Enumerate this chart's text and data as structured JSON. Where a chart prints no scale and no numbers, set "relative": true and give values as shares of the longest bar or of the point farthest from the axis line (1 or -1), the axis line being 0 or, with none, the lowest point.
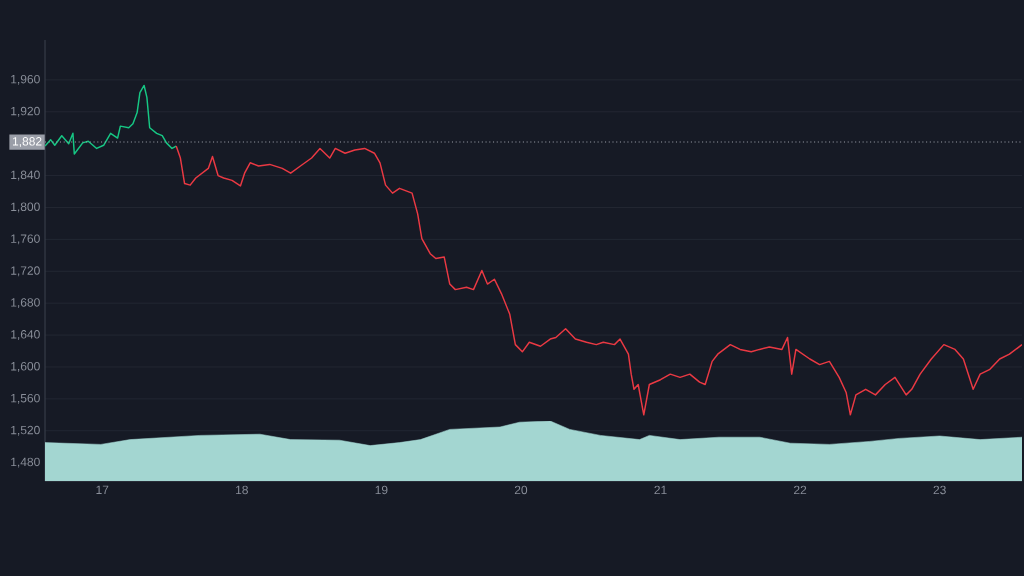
{
  "chart_data": [
    {
      "type": "line",
      "xlim": [
        16.59,
        23.59
      ],
      "ylim": [
        1457,
        2010
      ],
      "tick_labels": "y",
      "yticks": [
        {
          "value": 1480,
          "label": "1,480"
        },
        {
          "value": 1520,
          "label": "1,520"
        },
        {
          "value": 1560,
          "label": "1,560"
        },
        {
          "value": 1600,
          "label": "1,600"
        },
        {
          "value": 1640,
          "label": "1,640"
        },
        {
          "value": 1680,
          "label": "1,680"
        },
        {
          "value": 1720,
          "label": "1,720"
        },
        {
          "value": 1760,
          "label": "1,760"
        },
        {
          "value": 1800,
          "label": "1,800"
        },
        {
          "value": 1840,
          "label": "1,840"
        },
        {
          "value": 1920,
          "label": "1,920"
        },
        {
          "value": 1960,
          "label": "1,960"
        }
      ],
      "grid": "y",
      "ref_lines": [
        {
          "axis": "y",
          "value": 1882,
          "label": "1,882",
          "color": "#9a9ea8",
          "line_style": "dotted"
        }
      ],
      "series": [
        {
          "color": "#16c784",
          "x": [
            16.59,
            16.63,
            16.66,
            16.71,
            16.76,
            16.79,
            16.8,
            16.86,
            16.9,
            16.96,
            17.01,
            17.06,
            17.11,
            17.13,
            17.19,
            17.22,
            17.25,
            17.27,
            17.3,
            17.32,
            17.34,
            17.39,
            17.43,
            17.46,
            17.5,
            17.53
          ],
          "values": [
            1877,
            1885,
            1878,
            1890,
            1880,
            1893,
            1867,
            1881,
            1883,
            1874,
            1878,
            1893,
            1887,
            1902,
            1900,
            1905,
            1919,
            1944,
            1953,
            1938,
            1900,
            1893,
            1890,
            1881,
            1874,
            1877
          ]
        },
        {
          "color": "#ea3943",
          "x": [
            17.53,
            17.56,
            17.59,
            17.63,
            17.67,
            17.76,
            17.79,
            17.83,
            17.87,
            17.93,
            17.99,
            18.02,
            18.06,
            18.12,
            18.2,
            18.29,
            18.35,
            18.42,
            18.5,
            18.56,
            18.63,
            18.67,
            18.74,
            18.81,
            18.88,
            18.95,
            18.99,
            19.03,
            19.08,
            19.13,
            19.22,
            19.26,
            19.29,
            19.35,
            19.39,
            19.45,
            19.49,
            19.53,
            19.61,
            19.66,
            19.72,
            19.76,
            19.81,
            19.86,
            19.92,
            19.96,
            20.01,
            20.06,
            20.14,
            20.21,
            20.25,
            20.32,
            20.39,
            20.47,
            20.54,
            20.59,
            20.67,
            20.71,
            20.77,
            20.79,
            20.81,
            20.84,
            20.88,
            20.92,
            21.0,
            21.07,
            21.14,
            21.21,
            21.28,
            21.32,
            21.37,
            21.41,
            21.5,
            21.57,
            21.65,
            21.71,
            21.78,
            21.87,
            21.91,
            21.94,
            21.97,
            22.07,
            22.14,
            22.21,
            22.28,
            22.33,
            22.36,
            22.4,
            22.47,
            22.54,
            22.61,
            22.68,
            22.76,
            22.8,
            22.86,
            22.94,
            23.03,
            23.11,
            23.17,
            23.24,
            23.29,
            23.36,
            23.43,
            23.5,
            23.59
          ],
          "values": [
            1877,
            1862,
            1830,
            1828,
            1837,
            1849,
            1864,
            1840,
            1837,
            1834,
            1827,
            1843,
            1856,
            1852,
            1854,
            1849,
            1843,
            1852,
            1862,
            1874,
            1862,
            1874,
            1868,
            1872,
            1874,
            1868,
            1856,
            1828,
            1818,
            1824,
            1818,
            1792,
            1761,
            1742,
            1736,
            1738,
            1704,
            1697,
            1700,
            1697,
            1721,
            1704,
            1710,
            1692,
            1666,
            1628,
            1619,
            1631,
            1626,
            1635,
            1637,
            1648,
            1635,
            1631,
            1628,
            1631,
            1628,
            1635,
            1616,
            1591,
            1572,
            1578,
            1540,
            1578,
            1584,
            1591,
            1587,
            1591,
            1581,
            1578,
            1607,
            1616,
            1628,
            1622,
            1619,
            1622,
            1625,
            1622,
            1637,
            1591,
            1622,
            1610,
            1603,
            1607,
            1587,
            1568,
            1540,
            1565,
            1572,
            1565,
            1578,
            1587,
            1565,
            1572,
            1591,
            1610,
            1628,
            1622,
            1610,
            1572,
            1591,
            1597,
            1610,
            1616,
            1628
          ]
        }
      ]
    },
    {
      "type": "area",
      "relative": true,
      "tick_labels": "x",
      "xlim": [
        16.59,
        23.59
      ],
      "xticks": [
        17,
        18,
        19,
        20,
        21,
        22,
        23
      ],
      "color": "#a3d6d1",
      "x": [
        16.59,
        16.99,
        17.2,
        17.7,
        18.13,
        18.35,
        18.7,
        18.92,
        19.13,
        19.28,
        19.49,
        19.85,
        19.99,
        20.21,
        20.35,
        20.57,
        20.85,
        20.92,
        21.14,
        21.42,
        21.71,
        21.93,
        22.21,
        22.5,
        22.71,
        23.0,
        23.29,
        23.59
      ],
      "values": [
        0.64,
        0.61,
        0.69,
        0.76,
        0.78,
        0.69,
        0.68,
        0.59,
        0.64,
        0.69,
        0.86,
        0.9,
        0.98,
        1,
        0.86,
        0.76,
        0.69,
        0.76,
        0.69,
        0.73,
        0.73,
        0.63,
        0.61,
        0.66,
        0.71,
        0.75,
        0.69,
        0.73
      ]
    }
  ]
}
